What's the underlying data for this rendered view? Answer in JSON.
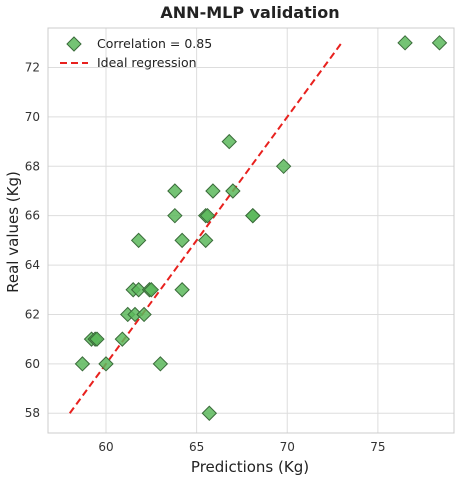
{
  "chart_data": {
    "type": "scatter",
    "title": "ANN-MLP validation",
    "xlabel": "Predictions (Kg)",
    "ylabel": "Real values (Kg)",
    "xlim": [
      56.8,
      79.2
    ],
    "ylim": [
      57.2,
      73.6
    ],
    "xticks": [
      60,
      65,
      70,
      75
    ],
    "yticks": [
      58,
      60,
      62,
      64,
      66,
      68,
      70,
      72
    ],
    "grid": true,
    "legend_position": "top-left",
    "series": [
      {
        "name": "Correlation = 0.85",
        "kind": "scatter",
        "marker": "diamond",
        "color": "#5cb85c",
        "edge_color": "#3a6b3a",
        "x": [
          58.7,
          59.2,
          59.4,
          59.5,
          60.0,
          60.9,
          61.2,
          61.5,
          61.6,
          61.8,
          61.8,
          62.1,
          62.4,
          62.5,
          63.0,
          63.8,
          63.8,
          64.2,
          64.2,
          65.5,
          65.5,
          65.6,
          65.7,
          65.9,
          66.8,
          67.0,
          68.1,
          68.1,
          69.8,
          76.5,
          78.4
        ],
        "y": [
          60,
          61,
          61,
          61,
          60,
          61,
          62,
          63,
          62,
          63,
          65,
          62,
          63,
          63,
          60,
          67,
          66,
          65,
          63,
          65,
          66,
          66,
          58,
          67,
          69,
          67,
          66,
          66,
          68,
          73,
          73
        ]
      },
      {
        "name": "Ideal regression",
        "kind": "line",
        "style": "dashed",
        "color": "#e8211e",
        "x": [
          58,
          73
        ],
        "y": [
          58,
          73
        ]
      }
    ]
  }
}
